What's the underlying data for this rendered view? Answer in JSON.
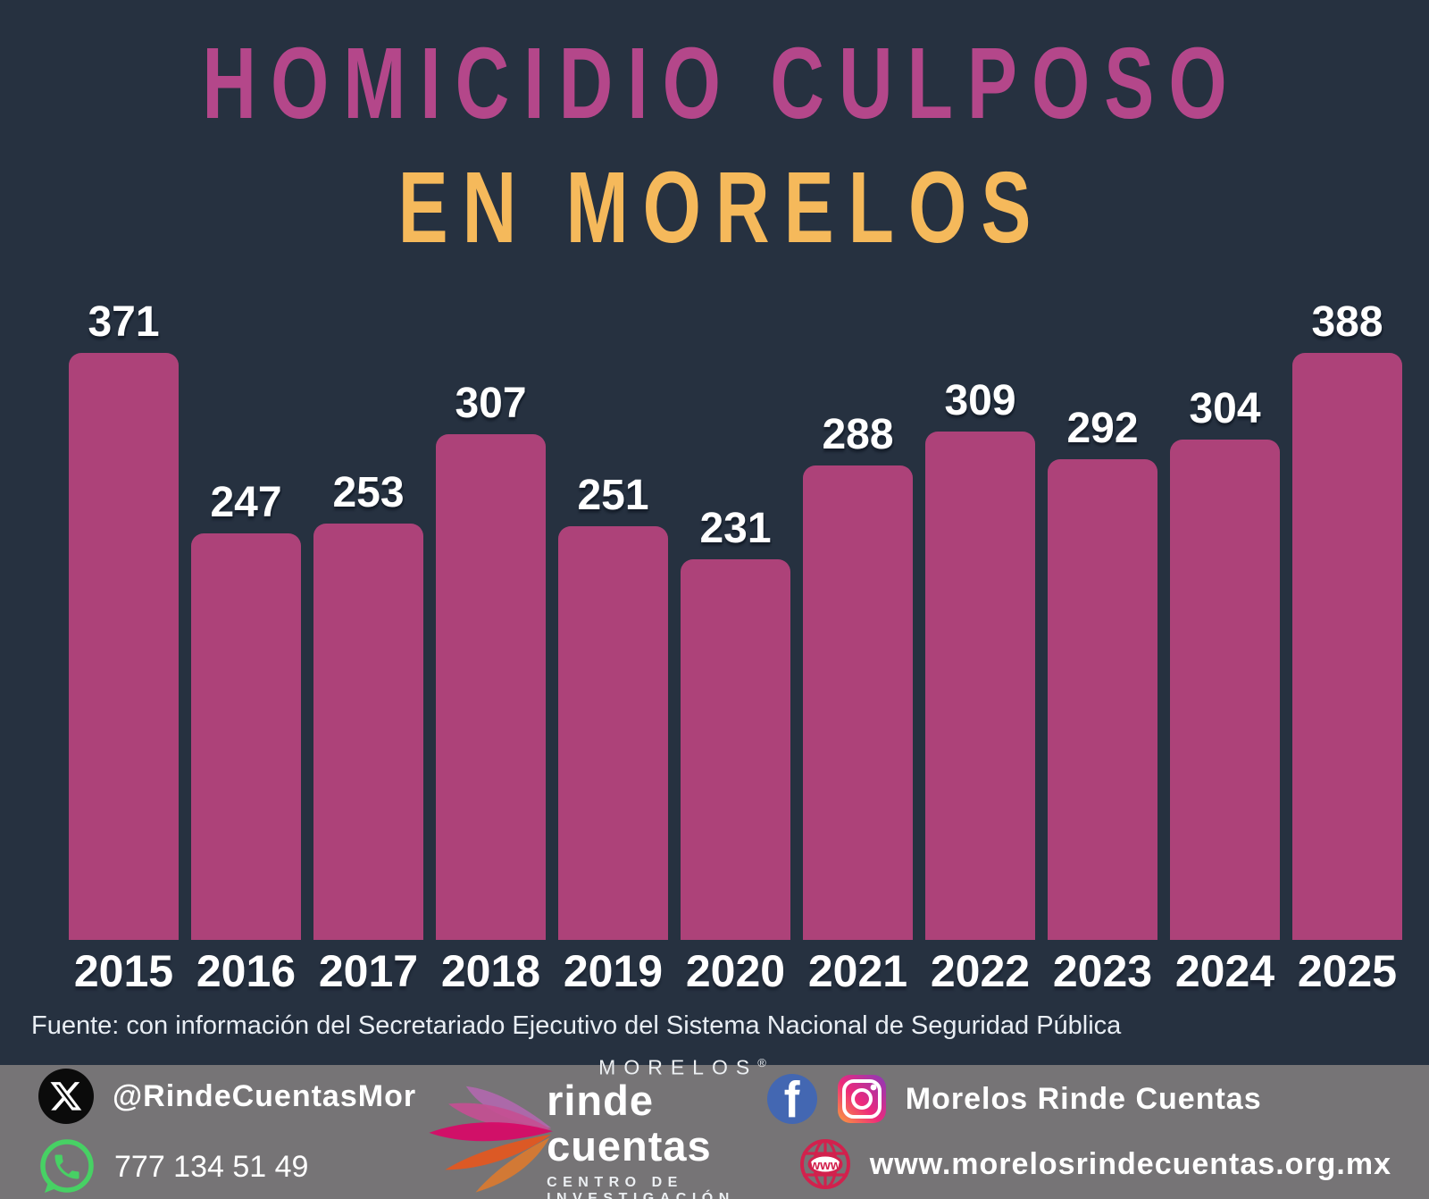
{
  "title": {
    "line1": "HOMICIDIO CULPOSO",
    "line2": "EN MORELOS"
  },
  "chart_data": {
    "type": "bar",
    "title": "Homicidio culposo en Morelos",
    "categories": [
      "2015",
      "2016",
      "2017",
      "2018",
      "2019",
      "2020",
      "2021",
      "2022",
      "2023",
      "2024",
      "2025"
    ],
    "values": [
      371,
      247,
      253,
      307,
      251,
      231,
      288,
      309,
      292,
      304,
      388
    ],
    "xlabel": "",
    "ylabel": "",
    "ylim": [
      0,
      388
    ],
    "grid": false,
    "legend": false,
    "bar_color": "#ad4279",
    "value_label_color": "#ffffff",
    "background_color": "#263140"
  },
  "source": "Fuente: con información del Secretariado Ejecutivo del Sistema Nacional de Seguridad Pública",
  "footer": {
    "twitter_handle": "@RindeCuentasMor",
    "phone": "777 134 51 49",
    "logo": {
      "region": "MORELOS",
      "reg_mark": "®",
      "name": "rinde cuentas",
      "subtitle": "CENTRO DE INVESTIGACIÓN"
    },
    "social_name": "Morelos Rinde Cuentas",
    "website": "www.morelosrindecuentas.org.mx",
    "globe_label": "www",
    "icons": [
      "x-twitter-icon",
      "whatsapp-icon",
      "facebook-icon",
      "instagram-icon",
      "globe-www-icon",
      "rinde-cuentas-logo"
    ]
  },
  "colors": {
    "background": "#263140",
    "bar": "#ad4279",
    "title_pink": "#b4478a",
    "title_yellow": "#f5b95b",
    "footer_gray": "#767476",
    "whatsapp_green": "#47d164",
    "facebook_blue": "#4367b2",
    "globe_red": "#d2214d"
  }
}
